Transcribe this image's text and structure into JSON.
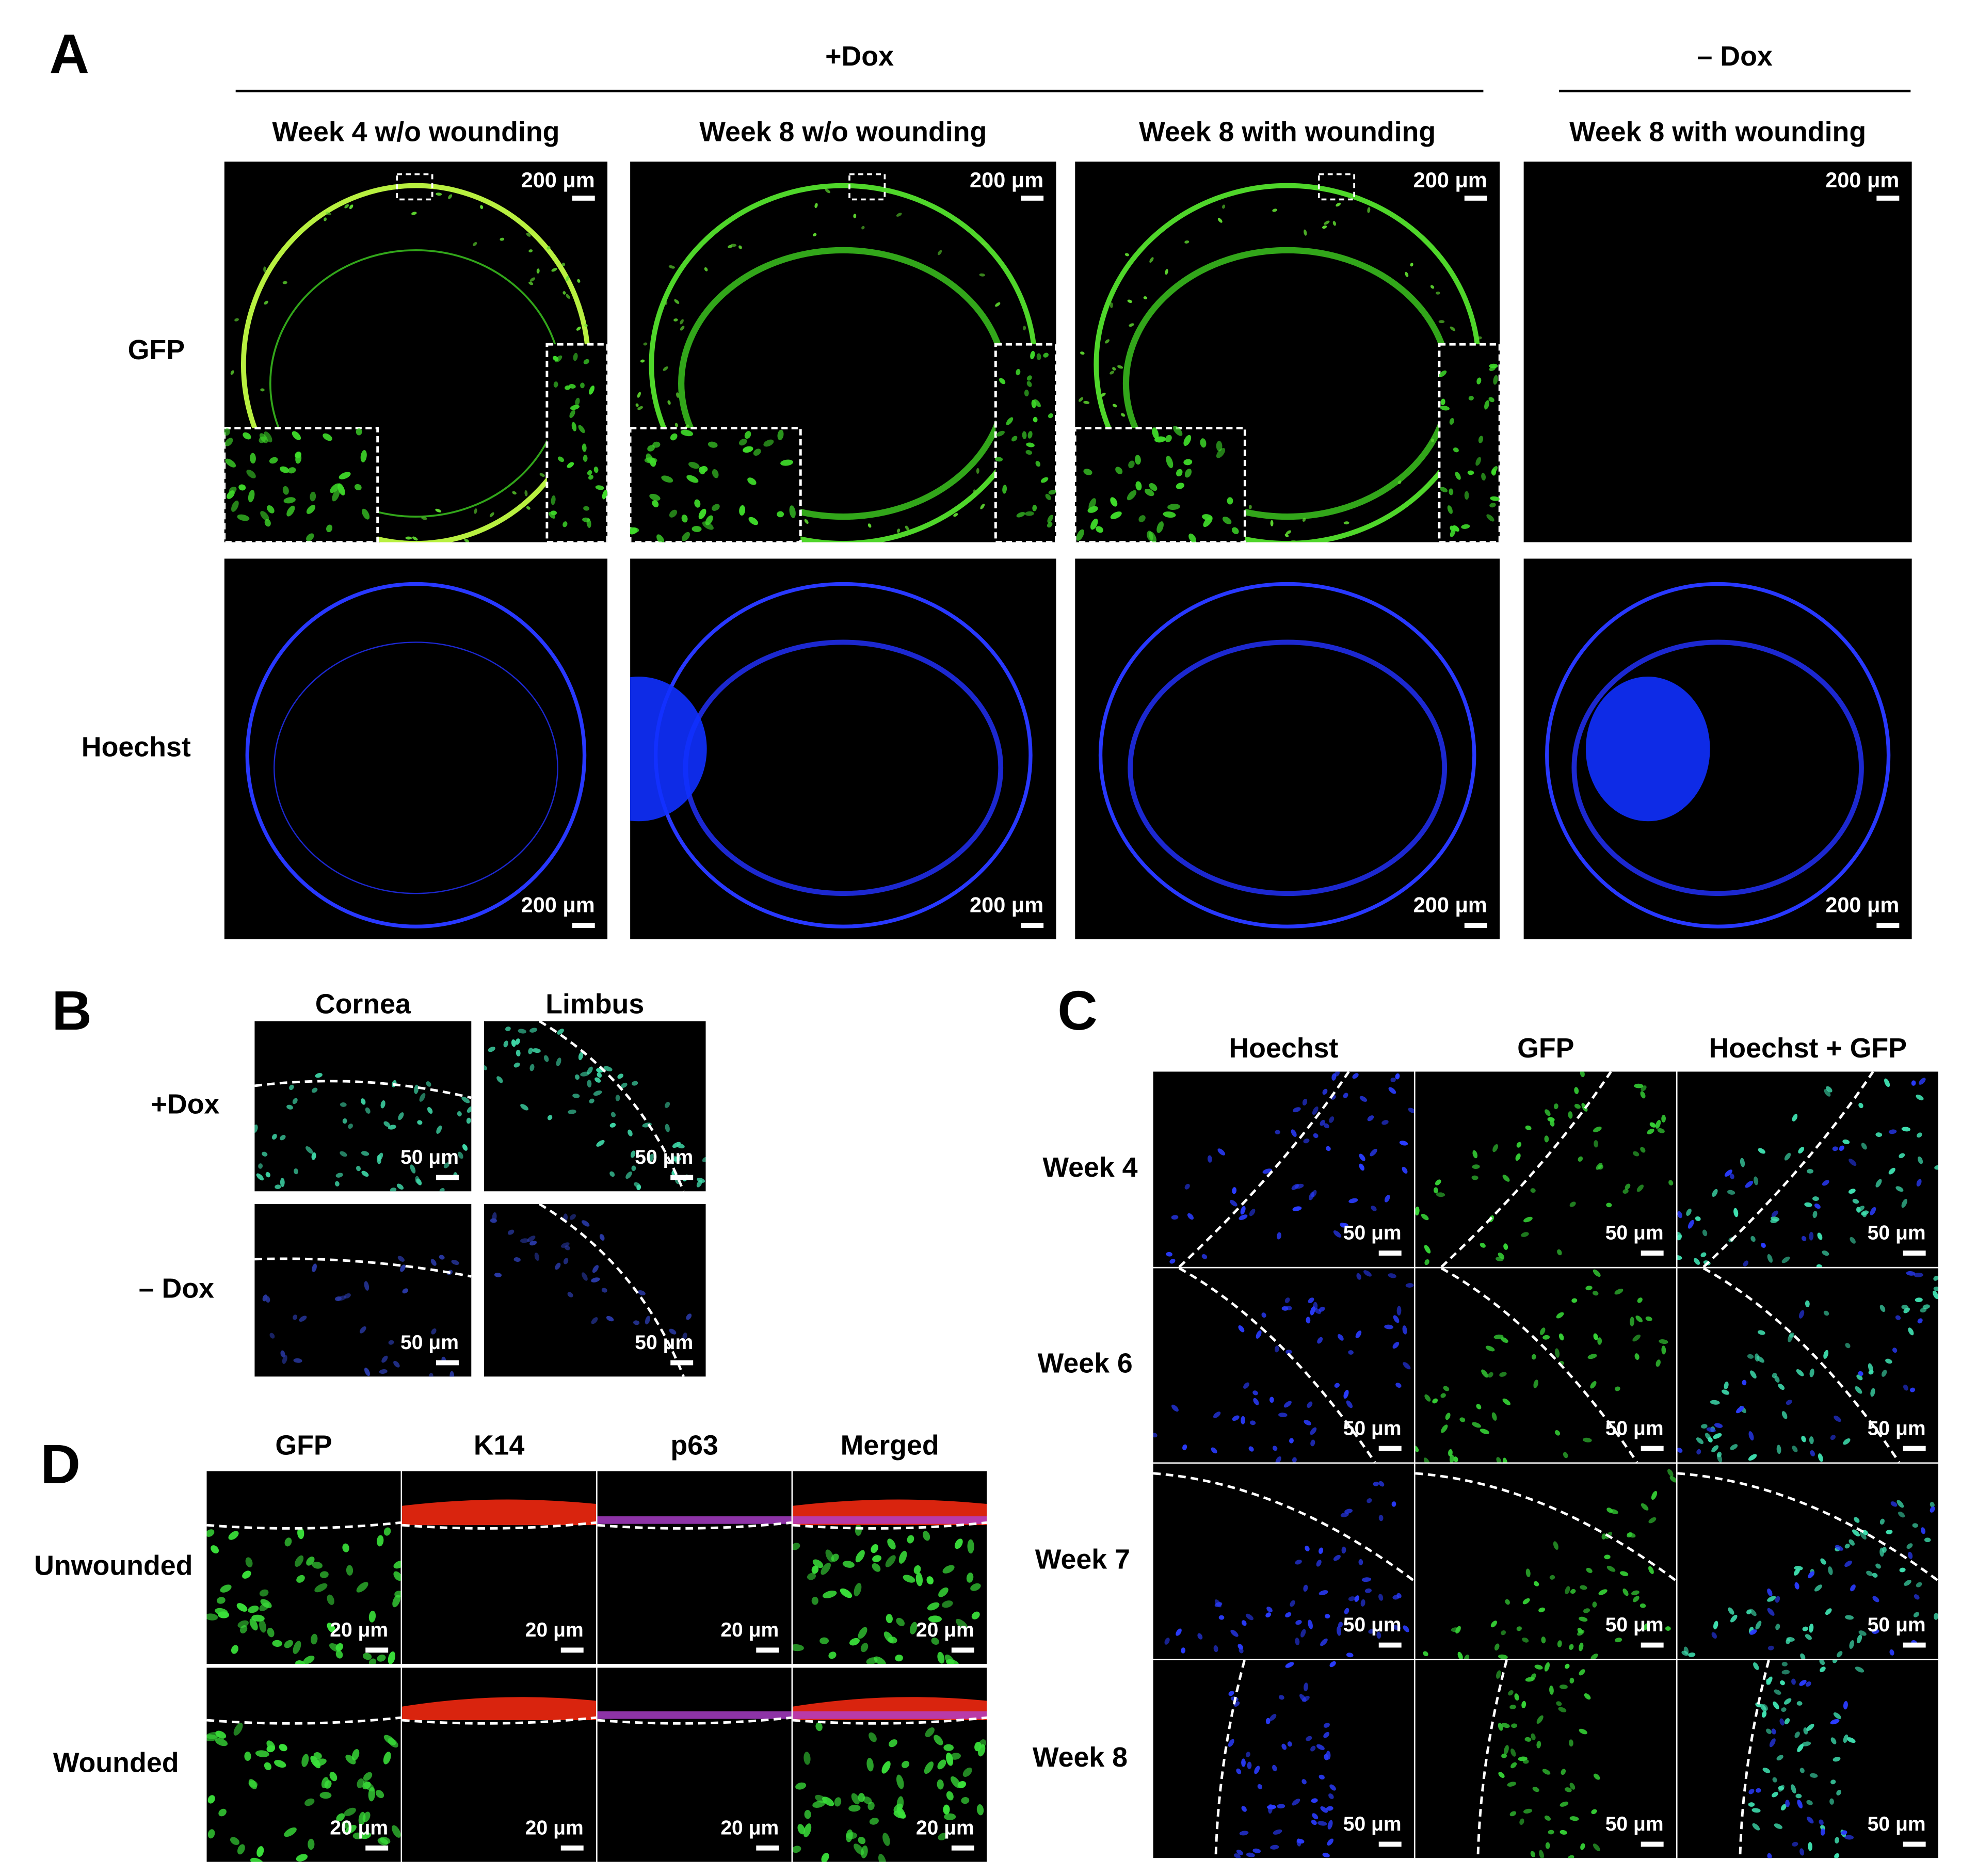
{
  "panels": [
    {
      "letter": "A",
      "groups": [
        "+Dox",
        "– Dox"
      ],
      "columns": [
        "Week 4 w/o wounding",
        "Week 8 w/o wounding",
        "Week 8 with wounding",
        "Week 8 with wounding"
      ],
      "rows": [
        "GFP",
        "Hoechst"
      ],
      "scale_bars": [
        [
          "200 μm",
          "200 μm",
          "200 μm",
          "200 μm"
        ],
        [
          "200 μm",
          "200 μm",
          "200 μm",
          "200 μm"
        ]
      ]
    },
    {
      "letter": "B",
      "columns": [
        "Cornea",
        "Limbus"
      ],
      "rows": [
        "+Dox",
        "– Dox"
      ],
      "scale_bars": [
        [
          "50 μm",
          "50 μm"
        ],
        [
          "50 μm",
          "50 μm"
        ]
      ]
    },
    {
      "letter": "C",
      "columns": [
        "Hoechst",
        "GFP",
        "Hoechst + GFP"
      ],
      "rows": [
        "Week 4",
        "Week 6",
        "Week 7",
        "Week 8"
      ],
      "scale_bars": [
        [
          "50 μm",
          "50 μm",
          "50 μm"
        ],
        [
          "50 μm",
          "50 μm",
          "50 μm"
        ],
        [
          "50 μm",
          "50 μm",
          "50 μm"
        ],
        [
          "50 μm",
          "50 μm",
          "50 μm"
        ]
      ]
    },
    {
      "letter": "D",
      "columns": [
        "GFP",
        "K14",
        "p63",
        "Merged"
      ],
      "rows": [
        "Unwounded",
        "Wounded"
      ],
      "scale_bars": [
        [
          "20 μm",
          "20 μm",
          "20 μm",
          "20 μm"
        ],
        [
          "20 μm",
          "20 μm",
          "20 μm",
          "20 μm"
        ]
      ]
    }
  ]
}
